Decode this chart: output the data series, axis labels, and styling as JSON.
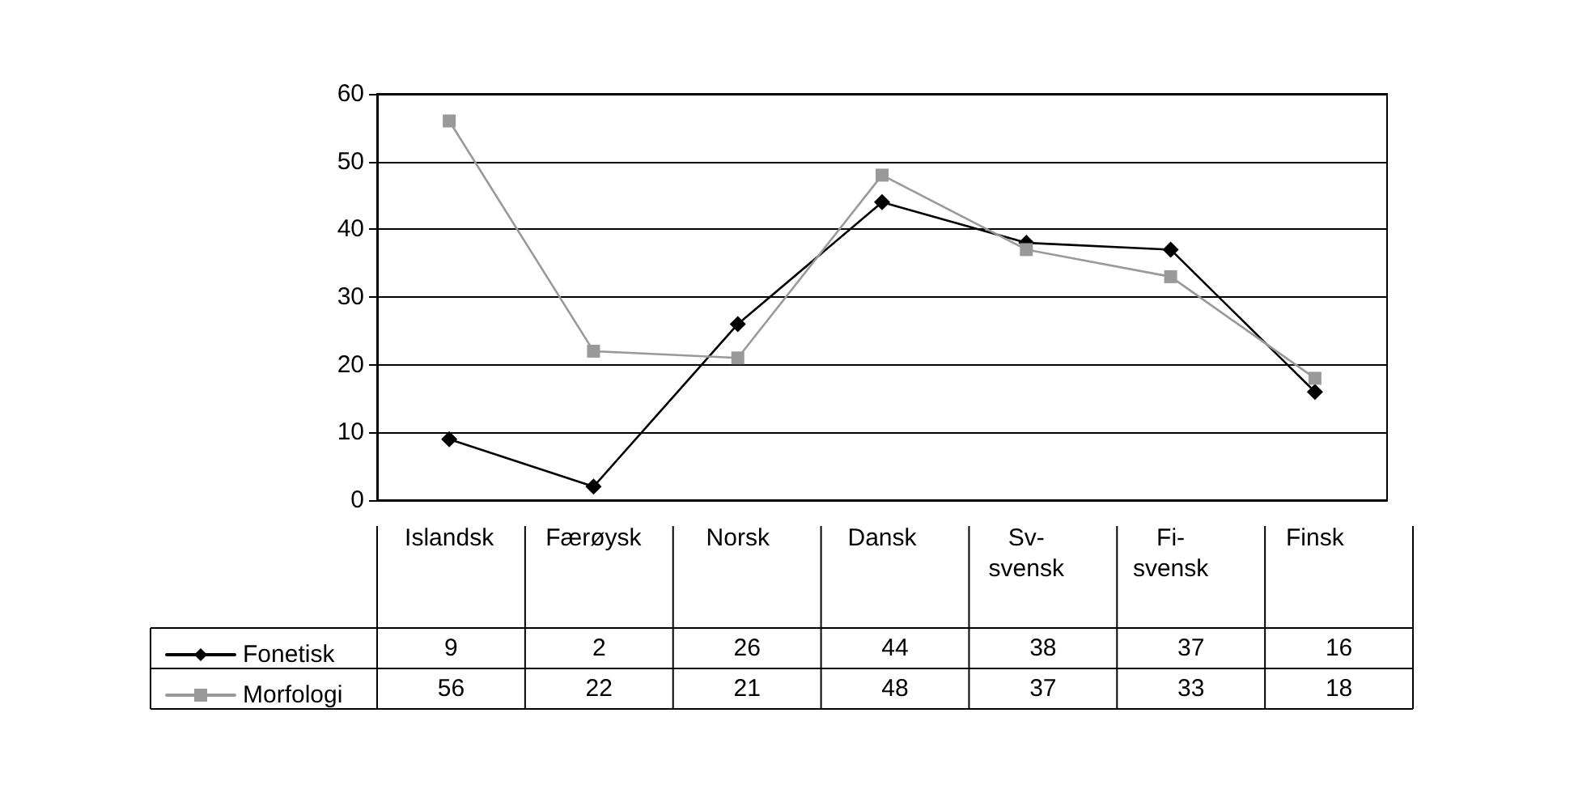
{
  "chart_data": {
    "type": "line",
    "categories": [
      "Islandsk",
      "Færøysk",
      "Norsk",
      "Dansk",
      "Sv-svensk",
      "Fi-svensk",
      "Finsk"
    ],
    "series": [
      {
        "name": "Fonetisk",
        "color": "#000000",
        "marker": "diamond",
        "values": [
          9,
          2,
          26,
          44,
          38,
          37,
          16
        ]
      },
      {
        "name": "Morfologi",
        "color": "#999999",
        "marker": "square",
        "values": [
          56,
          22,
          21,
          48,
          37,
          33,
          18
        ]
      }
    ],
    "ylim": [
      0,
      60
    ],
    "yticks": [
      0,
      10,
      20,
      30,
      40,
      50,
      60
    ],
    "grid": "y",
    "legend": "bottom",
    "data_labels": true,
    "line_style": "solid"
  }
}
